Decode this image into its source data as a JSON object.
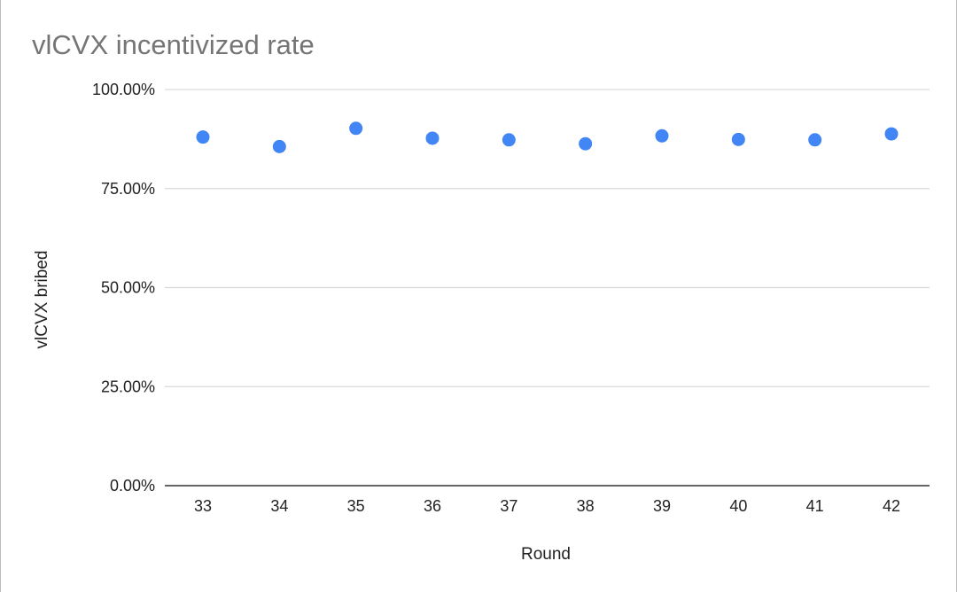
{
  "chart_data": {
    "type": "scatter",
    "title": "vlCVX incentivized rate",
    "xlabel": "Round",
    "ylabel": "vlCVX bribed",
    "x": [
      33,
      34,
      35,
      36,
      37,
      38,
      39,
      40,
      41,
      42
    ],
    "x_tick_labels": [
      "33",
      "34",
      "35",
      "36",
      "37",
      "38",
      "39",
      "40",
      "41",
      "42"
    ],
    "series": [
      {
        "values": [
          88.0,
          85.6,
          90.2,
          87.7,
          87.3,
          86.3,
          88.3,
          87.4,
          87.3,
          88.8
        ],
        "color": "#4285f4"
      }
    ],
    "ylim": [
      0,
      100
    ],
    "y_ticks": [
      0,
      25,
      50,
      75,
      100
    ],
    "y_tick_labels": [
      "0.00%",
      "25.00%",
      "50.00%",
      "75.00%",
      "100.00%"
    ],
    "grid": true,
    "legend": "none"
  }
}
